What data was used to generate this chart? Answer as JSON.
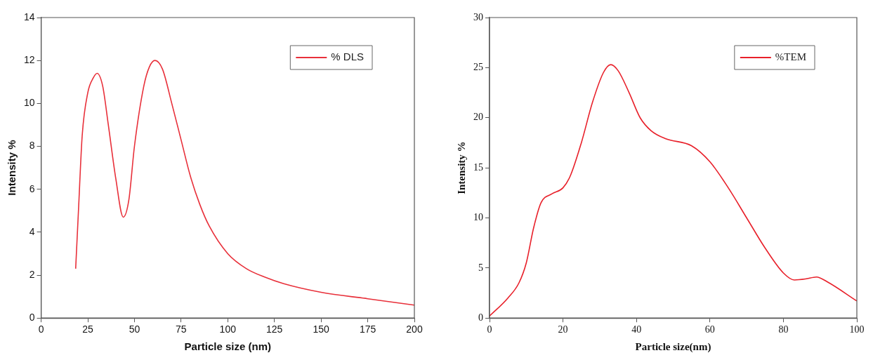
{
  "chart_data": [
    {
      "type": "line",
      "xlabel": "Particle size (nm)",
      "ylabel": "Intensity %",
      "xlim": [
        0,
        200
      ],
      "xticks": [
        0,
        25,
        50,
        75,
        100,
        125,
        150,
        175,
        200
      ],
      "ylim": [
        0,
        14
      ],
      "yticks": [
        0,
        2,
        4,
        6,
        8,
        10,
        12,
        14
      ],
      "grid": false,
      "legend": "top right",
      "marker": "none",
      "line_style": "solid",
      "series": [
        {
          "name": "% DLS",
          "color": "#e8303a",
          "x": [
            18.5,
            20,
            22,
            25,
            28,
            30,
            33,
            36,
            40,
            44,
            47,
            50,
            55,
            58,
            61,
            65,
            70,
            75,
            80,
            85,
            90,
            100,
            110,
            120,
            130,
            150,
            175,
            200
          ],
          "values": [
            2.3,
            5,
            8.5,
            10.5,
            11.2,
            11.4,
            10.8,
            9,
            6.5,
            4.7,
            5.5,
            8,
            10.8,
            11.7,
            12,
            11.6,
            10,
            8.3,
            6.6,
            5.3,
            4.3,
            3,
            2.3,
            1.9,
            1.6,
            1.2,
            0.9,
            0.6
          ]
        }
      ]
    },
    {
      "type": "line",
      "xlabel": "Particle size(nm)",
      "ylabel": "Intensity %",
      "xlim": [
        0,
        100
      ],
      "xticks": [
        0,
        20,
        40,
        60,
        80,
        100
      ],
      "ylim": [
        0,
        30
      ],
      "yticks": [
        0,
        5,
        10,
        15,
        20,
        25,
        30
      ],
      "grid": false,
      "legend": "top right",
      "marker": "none",
      "line_style": "solid",
      "series": [
        {
          "name": "%TEM",
          "color": "#e8202a",
          "x": [
            0,
            5,
            8,
            10,
            12,
            14,
            17,
            20,
            22,
            25,
            28,
            31,
            33,
            35,
            38,
            41,
            44,
            48,
            55,
            60,
            65,
            70,
            75,
            80,
            83,
            86,
            89,
            92,
            100
          ],
          "values": [
            0.2,
            2,
            3.5,
            5.5,
            9,
            11.5,
            12.4,
            13,
            14.2,
            17.5,
            21.5,
            24.5,
            25.3,
            24.7,
            22.5,
            20,
            18.7,
            17.9,
            17.2,
            15.6,
            13,
            10,
            7,
            4.5,
            3.8,
            3.9,
            4.1,
            3.6,
            1.7
          ]
        }
      ]
    }
  ]
}
